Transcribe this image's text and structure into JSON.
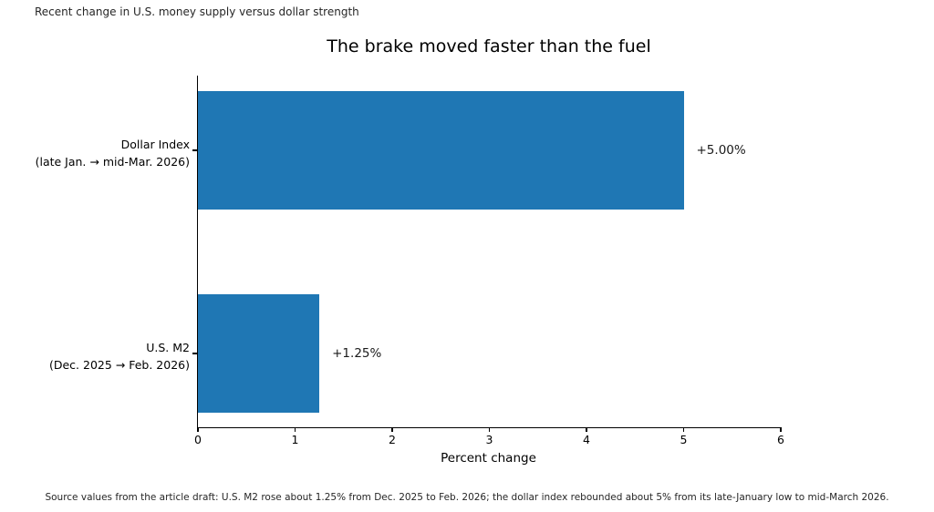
{
  "page": {
    "subtitle": "Recent change in U.S. money supply versus dollar strength",
    "source_note": "Source values from the article draft: U.S. M2 rose about 1.25% from Dec. 2025 to Feb. 2026; the dollar index rebounded about 5% from its late-January low to mid-March 2026."
  },
  "chart_data": {
    "type": "bar",
    "orientation": "horizontal",
    "title": "The brake moved faster than the fuel",
    "xlabel": "Percent change",
    "xlim": [
      0,
      6
    ],
    "x_ticks": [
      0,
      1,
      2,
      3,
      4,
      5,
      6
    ],
    "grid": false,
    "legend": null,
    "bar_color": "#1f77b4",
    "bars": [
      {
        "category_lines": [
          "Dollar Index",
          "(late Jan. → mid-Mar. 2026)"
        ],
        "value": 5.0,
        "value_label": "+5.00%"
      },
      {
        "category_lines": [
          "U.S. M2",
          "(Dec. 2025 → Feb. 2026)"
        ],
        "value": 1.25,
        "value_label": "+1.25%"
      }
    ]
  }
}
